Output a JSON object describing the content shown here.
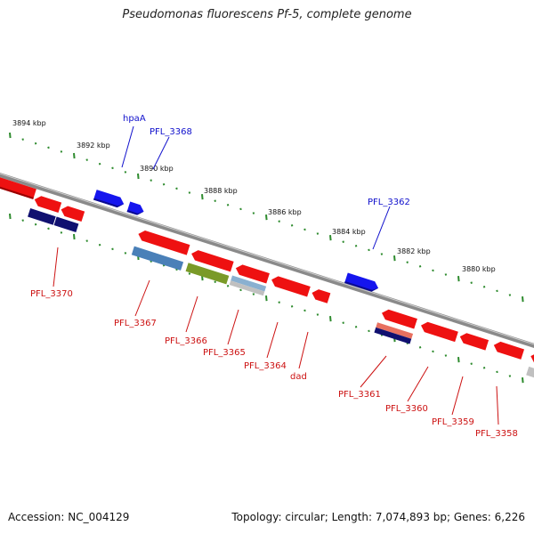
{
  "title": "Pseudomonas fluorescens Pf-5, complete genome",
  "footer": {
    "accession": "Accession: NC_004129",
    "summary": "Topology: circular; Length: 7,074,893 bp; Genes: 6,226"
  },
  "ruler_labels": [
    "3894 kbp",
    "3892 kbp",
    "3890 kbp",
    "3888 kbp",
    "3886 kbp",
    "3884 kbp",
    "3882 kbp",
    "3880 kbp"
  ],
  "gene_labels_top": [
    "hpaA",
    "PFL_3368",
    "PFL_3362"
  ],
  "gene_labels_bottom": [
    "PFL_3370",
    "PFL_3367",
    "PFL_3366",
    "PFL_3365",
    "PFL_3364",
    "dad",
    "PFL_3361",
    "PFL_3360",
    "PFL_3359",
    "PFL_3358"
  ],
  "colors": {
    "forward_gene": "#1010ee",
    "reverse_gene": "#ee1111",
    "top_label": "#1010cc",
    "bottom_label": "#cc1111",
    "tick": "#2e8b2e",
    "backbone": "#808080",
    "cog_navy": "#101070",
    "cog_steel": "#4a80b8",
    "cog_olive": "#7a9a28",
    "cog_light": "#8ab0d0",
    "cog_salmon": "#e87060",
    "cog_grey": "#c0c0c0"
  }
}
